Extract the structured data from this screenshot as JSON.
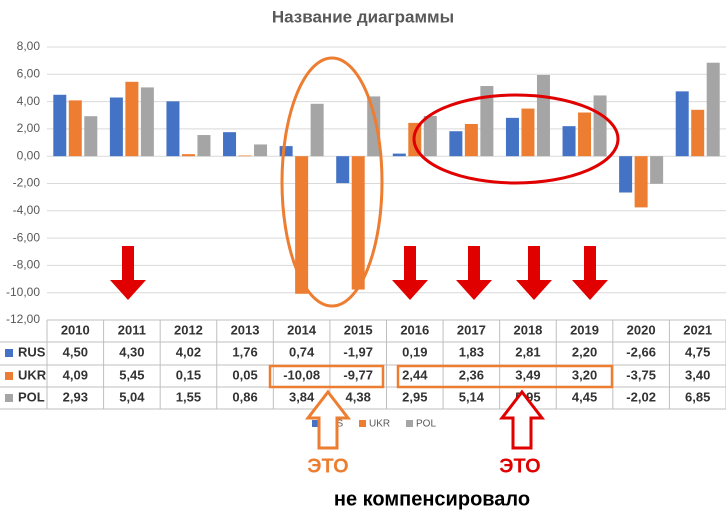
{
  "chart_data": {
    "type": "bar",
    "title": "Название диаграммы",
    "categories": [
      "2010",
      "2011",
      "2012",
      "2013",
      "2014",
      "2015",
      "2016",
      "2017",
      "2018",
      "2019",
      "2020",
      "2021"
    ],
    "series": [
      {
        "name": "RUS",
        "color": "#4472c4",
        "values": [
          4.5,
          4.3,
          4.02,
          1.76,
          0.74,
          -1.97,
          0.19,
          1.83,
          2.81,
          2.2,
          -2.66,
          4.75
        ],
        "value_labels": [
          "4,50",
          "4,30",
          "4,02",
          "1,76",
          "0,74",
          "-1,97",
          "0,19",
          "1,83",
          "2,81",
          "2,20",
          "-2,66",
          "4,75"
        ]
      },
      {
        "name": "UKR",
        "color": "#ed7d31",
        "values": [
          4.09,
          5.45,
          0.15,
          0.05,
          -10.08,
          -9.77,
          2.44,
          2.36,
          3.49,
          3.2,
          -3.75,
          3.4
        ],
        "value_labels": [
          "4,09",
          "5,45",
          "0,15",
          "0,05",
          "-10,08",
          "-9,77",
          "2,44",
          "2,36",
          "3,49",
          "3,20",
          "-3,75",
          "3,40"
        ]
      },
      {
        "name": "POL",
        "color": "#a5a5a5",
        "values": [
          2.93,
          5.04,
          1.55,
          0.86,
          3.84,
          4.38,
          2.95,
          5.14,
          5.95,
          4.45,
          -2.02,
          6.85
        ],
        "value_labels": [
          "2,93",
          "5,04",
          "1,55",
          "0,86",
          "3,84",
          "4,38",
          "2,95",
          "5,14",
          "5,95",
          "4,45",
          "-2,02",
          "6,85"
        ]
      }
    ],
    "ylim": [
      -12,
      8
    ],
    "yticks": [
      {
        "value": -12,
        "label": "-12,00"
      },
      {
        "value": -10,
        "label": "-10,00"
      },
      {
        "value": -8,
        "label": "-8,00"
      },
      {
        "value": -6,
        "label": "-6,00"
      },
      {
        "value": -4,
        "label": "-4,00"
      },
      {
        "value": -2,
        "label": "-2,00"
      },
      {
        "value": 0,
        "label": "0,00"
      },
      {
        "value": 2,
        "label": "2,00"
      },
      {
        "value": 4,
        "label": "4,00"
      },
      {
        "value": 6,
        "label": "6,00"
      },
      {
        "value": 8,
        "label": "8,00"
      }
    ],
    "grid": true,
    "legend": "bottom",
    "annotations": [
      "ЭТО",
      "ЭТО",
      "не компенсировало"
    ]
  }
}
